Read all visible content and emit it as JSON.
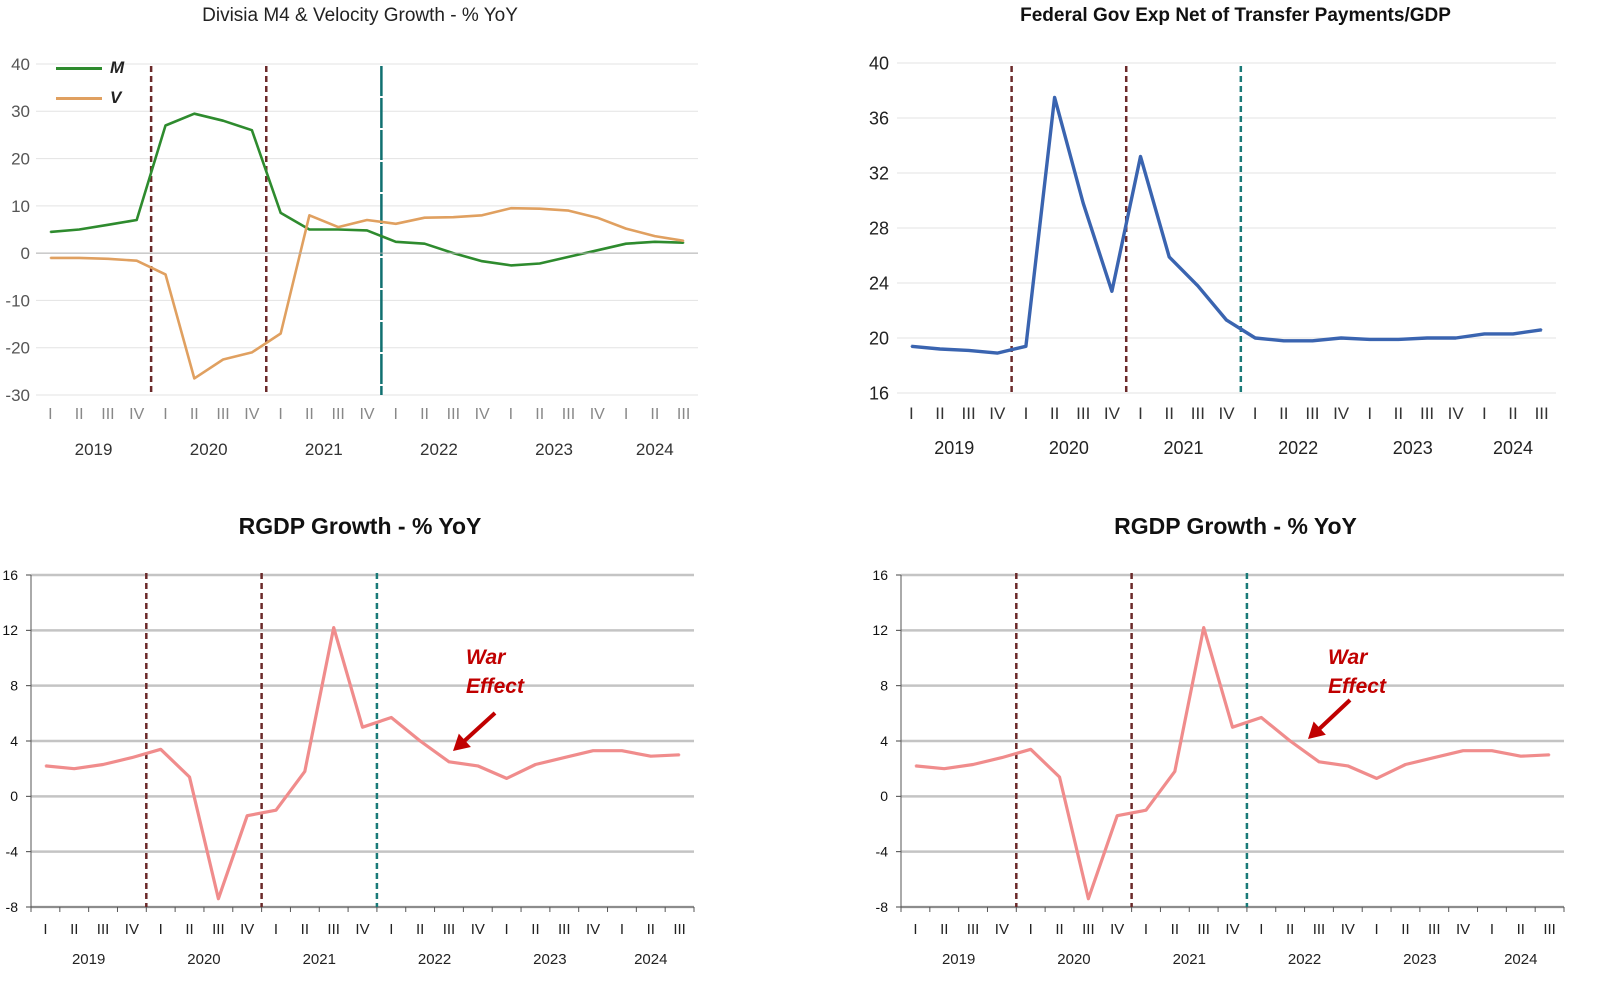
{
  "colors": {
    "m_series": "#2e8b2e",
    "v_series": "#e0a060",
    "exp_series": "#3a64b0",
    "rgdp_series": "#f08c8c",
    "red_vline": "#6b2a2a",
    "teal_vline": "#1a7a78",
    "teal_solid": "#107070",
    "annotation": "#c00000",
    "grid_light": "#e3e3e3",
    "grid_dark": "#c4c4c4"
  },
  "quarters": [
    "I",
    "II",
    "III",
    "IV",
    "I",
    "II",
    "III",
    "IV",
    "I",
    "II",
    "III",
    "IV",
    "I",
    "II",
    "III",
    "IV",
    "I",
    "II",
    "III",
    "IV",
    "I",
    "II",
    "III"
  ],
  "years": [
    "2019",
    "2020",
    "2021",
    "2022",
    "2023",
    "2024"
  ],
  "chart_data": [
    {
      "type": "line",
      "title": "Divisia M4 & Velocity Growth - % YoY",
      "xlabel": "",
      "ylabel": "",
      "ylim": [
        -30,
        40
      ],
      "yticks": [
        "40",
        "30",
        "20",
        "10",
        "0",
        "-10",
        "-20",
        "-30"
      ],
      "grid": true,
      "legend": "top-left",
      "categories": [
        "2019 I",
        "2019 II",
        "2019 III",
        "2019 IV",
        "2020 I",
        "2020 II",
        "2020 III",
        "2020 IV",
        "2021 I",
        "2021 II",
        "2021 III",
        "2021 IV",
        "2022 I",
        "2022 II",
        "2022 III",
        "2022 IV",
        "2023 I",
        "2023 II",
        "2023 III",
        "2023 IV",
        "2024 I",
        "2024 II",
        "2024 III"
      ],
      "series": [
        {
          "name": "M",
          "values": [
            4.5,
            5,
            6,
            7,
            27,
            29.5,
            28,
            26,
            8.5,
            5,
            5,
            4.8,
            2.4,
            2,
            0,
            -1.7,
            -2.6,
            -2.2,
            -0.8,
            0.6,
            2,
            2.4,
            2.2
          ]
        },
        {
          "name": "V",
          "values": [
            -1,
            -1,
            -1.2,
            -1.6,
            -4.5,
            -26.5,
            -22.5,
            -21,
            -17,
            8,
            5.5,
            7,
            6.2,
            7.5,
            7.6,
            8,
            9.5,
            9.4,
            9,
            7.5,
            5.2,
            3.6,
            2.6
          ]
        }
      ],
      "vlines": [
        4,
        8,
        12
      ]
    },
    {
      "type": "line",
      "title": "Federal Gov Exp Net of Transfer Payments/GDP",
      "xlabel": "",
      "ylabel": "",
      "ylim": [
        16,
        40
      ],
      "yticks": [
        "40",
        "36",
        "32",
        "28",
        "24",
        "20",
        "16"
      ],
      "grid": true,
      "categories": [
        "2019 I",
        "2019 II",
        "2019 III",
        "2019 IV",
        "2020 I",
        "2020 II",
        "2020 III",
        "2020 IV",
        "2021 I",
        "2021 II",
        "2021 III",
        "2021 IV",
        "2022 I",
        "2022 II",
        "2022 III",
        "2022 IV",
        "2023 I",
        "2023 II",
        "2023 III",
        "2023 IV",
        "2024 I",
        "2024 II",
        "2024 III"
      ],
      "series": [
        {
          "values": [
            19.4,
            19.2,
            19.1,
            18.9,
            19.4,
            37.5,
            29.8,
            23.4,
            33.2,
            25.9,
            23.8,
            21.3,
            20,
            19.8,
            19.8,
            20,
            19.9,
            19.9,
            20,
            20,
            20.3,
            20.3,
            20.6
          ]
        }
      ],
      "vlines": [
        4,
        8,
        12
      ]
    },
    {
      "type": "line",
      "title": "RGDP Growth - % YoY",
      "xlabel": "",
      "ylabel": "",
      "ylim": [
        -8,
        16
      ],
      "yticks": [
        "16",
        "12",
        "8",
        "4",
        "0",
        "-4",
        "-8"
      ],
      "grid": true,
      "categories": [
        "2019 I",
        "2019 II",
        "2019 III",
        "2019 IV",
        "2020 I",
        "2020 II",
        "2020 III",
        "2020 IV",
        "2021 I",
        "2021 II",
        "2021 III",
        "2021 IV",
        "2022 I",
        "2022 II",
        "2022 III",
        "2022 IV",
        "2023 I",
        "2023 II",
        "2023 III",
        "2023 IV",
        "2024 I",
        "2024 II",
        "2024 III"
      ],
      "series": [
        {
          "values": [
            2.2,
            2,
            2.3,
            2.8,
            3.4,
            1.4,
            -7.4,
            -1.4,
            -1,
            1.8,
            12.2,
            5,
            5.7,
            4,
            2.5,
            2.2,
            1.3,
            2.3,
            2.8,
            3.3,
            3.3,
            2.9,
            3.0
          ]
        }
      ],
      "vlines": [
        4,
        8,
        12
      ],
      "annotation": {
        "text_line1": "War",
        "text_line2": "Effect"
      }
    },
    {
      "type": "line",
      "title": "RGDP Growth - % YoY",
      "xlabel": "",
      "ylabel": "",
      "ylim": [
        -8,
        16
      ],
      "yticks": [
        "16",
        "12",
        "8",
        "4",
        "0",
        "-4",
        "-8"
      ],
      "grid": true,
      "categories": [
        "2019 I",
        "2019 II",
        "2019 III",
        "2019 IV",
        "2020 I",
        "2020 II",
        "2020 III",
        "2020 IV",
        "2021 I",
        "2021 II",
        "2021 III",
        "2021 IV",
        "2022 I",
        "2022 II",
        "2022 III",
        "2022 IV",
        "2023 I",
        "2023 II",
        "2023 III",
        "2023 IV",
        "2024 I",
        "2024 II",
        "2024 III"
      ],
      "series": [
        {
          "values": [
            2.2,
            2,
            2.3,
            2.8,
            3.4,
            1.4,
            -7.4,
            -1.4,
            -1,
            1.8,
            12.2,
            5,
            5.7,
            4,
            2.5,
            2.2,
            1.3,
            2.3,
            2.8,
            3.3,
            3.3,
            2.9,
            3.0
          ]
        }
      ],
      "vlines": [
        4,
        8,
        12
      ],
      "annotation": {
        "text_line1": "War",
        "text_line2": "Effect"
      }
    }
  ]
}
